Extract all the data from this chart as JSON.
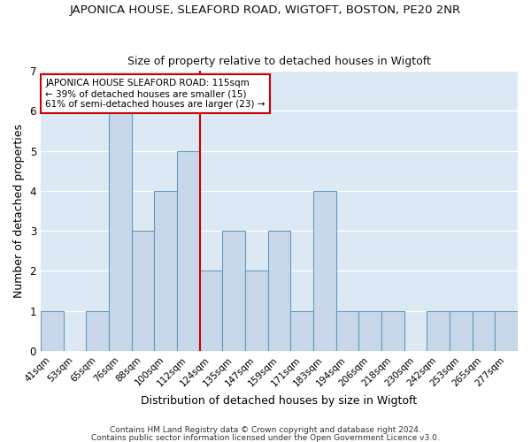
{
  "title": "JAPONICA HOUSE, SLEAFORD ROAD, WIGTOFT, BOSTON, PE20 2NR",
  "subtitle": "Size of property relative to detached houses in Wigtoft",
  "xlabel": "Distribution of detached houses by size in Wigtoft",
  "ylabel": "Number of detached properties",
  "bin_labels": [
    "41sqm",
    "53sqm",
    "65sqm",
    "76sqm",
    "88sqm",
    "100sqm",
    "112sqm",
    "124sqm",
    "135sqm",
    "147sqm",
    "159sqm",
    "171sqm",
    "183sqm",
    "194sqm",
    "206sqm",
    "218sqm",
    "230sqm",
    "242sqm",
    "253sqm",
    "265sqm",
    "277sqm"
  ],
  "bar_heights": [
    1,
    0,
    1,
    6,
    3,
    4,
    5,
    2,
    3,
    2,
    3,
    1,
    4,
    1,
    1,
    1,
    0,
    1,
    1,
    1,
    1
  ],
  "bar_color": "#c8d8ea",
  "bar_edge_color": "#6699bb",
  "grid_color": "#ffffff",
  "bg_color": "#dce8f4",
  "fig_color": "#ffffff",
  "reference_line_index": 6,
  "reference_line_color": "#cc0000",
  "annotation_line1": "JAPONICA HOUSE SLEAFORD ROAD: 115sqm",
  "annotation_line2": "← 39% of detached houses are smaller (15)",
  "annotation_line3": "61% of semi-detached houses are larger (23) →",
  "annotation_box_color": "#ffffff",
  "annotation_box_edge": "#cc0000",
  "ylim": [
    0,
    7
  ],
  "yticks": [
    0,
    1,
    2,
    3,
    4,
    5,
    6,
    7
  ],
  "footer1": "Contains HM Land Registry data © Crown copyright and database right 2024.",
  "footer2": "Contains public sector information licensed under the Open Government Licence v3.0."
}
